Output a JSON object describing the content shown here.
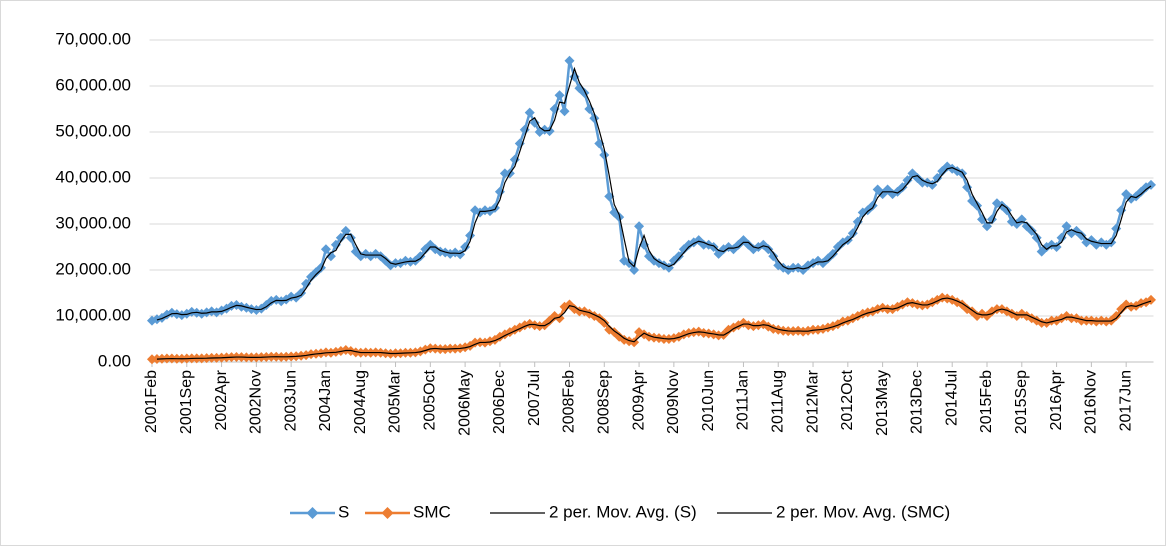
{
  "chart_data": {
    "type": "line",
    "categories": [
      "2001Feb",
      null,
      null,
      null,
      null,
      null,
      null,
      "2001Sep",
      null,
      null,
      null,
      null,
      null,
      null,
      "2002Apr",
      null,
      null,
      null,
      null,
      null,
      null,
      "2002Nov",
      null,
      null,
      null,
      null,
      null,
      null,
      "2003Jun",
      null,
      null,
      null,
      null,
      null,
      null,
      "2004Jan",
      null,
      null,
      null,
      null,
      null,
      null,
      "2004Aug",
      null,
      null,
      null,
      null,
      null,
      null,
      "2005Mar",
      null,
      null,
      null,
      null,
      null,
      null,
      "2005Oct",
      null,
      null,
      null,
      null,
      null,
      null,
      "2006May",
      null,
      null,
      null,
      null,
      null,
      null,
      "2006Dec",
      null,
      null,
      null,
      null,
      null,
      null,
      "2007Jul",
      null,
      null,
      null,
      null,
      null,
      null,
      "2008Feb",
      null,
      null,
      null,
      null,
      null,
      null,
      "2008Sep",
      null,
      null,
      null,
      null,
      null,
      null,
      "2009Apr",
      null,
      null,
      null,
      null,
      null,
      null,
      "2009Nov",
      null,
      null,
      null,
      null,
      null,
      null,
      "2010Jun",
      null,
      null,
      null,
      null,
      null,
      null,
      "2011Jan",
      null,
      null,
      null,
      null,
      null,
      null,
      "2011Aug",
      null,
      null,
      null,
      null,
      null,
      null,
      "2012Mar",
      null,
      null,
      null,
      null,
      null,
      null,
      "2012Oct",
      null,
      null,
      null,
      null,
      null,
      null,
      "2013May",
      null,
      null,
      null,
      null,
      null,
      null,
      "2013Dec",
      null,
      null,
      null,
      null,
      null,
      null,
      "2014Jul",
      null,
      null,
      null,
      null,
      null,
      null,
      "2015Feb",
      null,
      null,
      null,
      null,
      null,
      null,
      "2015Sep",
      null,
      null,
      null,
      null,
      null,
      null,
      "2016Apr",
      null,
      null,
      null,
      null,
      null,
      null,
      "2016Nov",
      null,
      null,
      null,
      null,
      null,
      null,
      "2017Jun",
      null,
      null,
      null,
      null,
      null
    ],
    "series": [
      {
        "name": "S",
        "color": "#5b9bd5",
        "values": [
          9000,
          9300,
          9600,
          10300,
          10700,
          10400,
          10200,
          10500,
          10900,
          10700,
          10500,
          10800,
          11000,
          10800,
          11200,
          11600,
          12200,
          12400,
          12000,
          11800,
          11500,
          11300,
          11600,
          12400,
          13300,
          13500,
          13200,
          13600,
          14200,
          14000,
          15000,
          17000,
          18500,
          19500,
          20500,
          24500,
          23000,
          25500,
          27000,
          28500,
          27000,
          24000,
          23000,
          23500,
          23000,
          23500,
          23000,
          22000,
          21000,
          21500,
          21500,
          22000,
          21800,
          22000,
          23000,
          24500,
          25500,
          24500,
          24000,
          23800,
          23500,
          23800,
          23400,
          25000,
          27500,
          33000,
          32500,
          33000,
          32800,
          33500,
          37000,
          41000,
          41000,
          44000,
          47500,
          50500,
          54200,
          52000,
          50000,
          50500,
          50200,
          55000,
          58000,
          54500,
          65500,
          62000,
          59500,
          58500,
          55000,
          53000,
          47500,
          45000,
          36000,
          32500,
          31500,
          22000,
          21500,
          20000,
          29500,
          25500,
          23000,
          22000,
          21500,
          21000,
          20500,
          22000,
          23000,
          24500,
          25500,
          26000,
          26500,
          25500,
          25500,
          25000,
          23500,
          24500,
          25000,
          24500,
          25500,
          26500,
          25500,
          24500,
          25000,
          25500,
          24500,
          23000,
          21000,
          20500,
          20000,
          20500,
          20500,
          20000,
          21000,
          21500,
          22000,
          21500,
          22500,
          23500,
          25000,
          26000,
          26500,
          28000,
          30500,
          32500,
          33000,
          34000,
          37500,
          36500,
          37500,
          36500,
          37000,
          38000,
          39500,
          41000,
          40000,
          39000,
          39000,
          38500,
          40000,
          41500,
          42500,
          42000,
          41500,
          41000,
          38000,
          35000,
          34000,
          31000,
          29500,
          31000,
          34500,
          34000,
          33000,
          30500,
          30000,
          31000,
          29500,
          28500,
          27000,
          24000,
          25000,
          25500,
          25000,
          27000,
          29500,
          28000,
          28500,
          27500,
          26000,
          26500,
          25500,
          26000,
          25500,
          26000,
          29000,
          33000,
          36500,
          35500,
          36000,
          37000,
          38000,
          38500
        ]
      },
      {
        "name": "SMC",
        "color": "#ed7d31",
        "values": [
          600,
          650,
          700,
          750,
          750,
          700,
          700,
          750,
          800,
          800,
          800,
          850,
          900,
          900,
          950,
          1000,
          1050,
          1100,
          1050,
          1000,
          1000,
          1000,
          1050,
          1100,
          1150,
          1150,
          1100,
          1150,
          1200,
          1250,
          1350,
          1500,
          1700,
          1800,
          1900,
          2100,
          2000,
          2200,
          2400,
          2600,
          2400,
          2100,
          2000,
          2100,
          2000,
          2100,
          2000,
          1900,
          1800,
          1900,
          1900,
          2000,
          2000,
          2100,
          2300,
          2700,
          3000,
          2900,
          2800,
          2800,
          2900,
          2900,
          3000,
          3200,
          3500,
          4200,
          4300,
          4200,
          4500,
          4800,
          5500,
          6000,
          6500,
          7000,
          7500,
          8000,
          8300,
          8000,
          7800,
          8000,
          9000,
          10000,
          9500,
          12000,
          12500,
          11500,
          11000,
          11000,
          10500,
          10000,
          9500,
          8500,
          7000,
          6500,
          5500,
          4800,
          4500,
          4300,
          6500,
          6000,
          5500,
          5300,
          5200,
          5000,
          5000,
          5200,
          5500,
          6000,
          6300,
          6500,
          6600,
          6300,
          6200,
          6000,
          5800,
          5900,
          7000,
          7500,
          8000,
          8500,
          8000,
          7800,
          8000,
          8200,
          7700,
          7200,
          7000,
          6800,
          6700,
          6700,
          6800,
          6600,
          6800,
          7000,
          7000,
          7200,
          7500,
          7800,
          8200,
          8800,
          9000,
          9500,
          10000,
          10500,
          10800,
          11000,
          11500,
          11800,
          11500,
          11500,
          12000,
          12500,
          13000,
          12800,
          12500,
          12300,
          12500,
          13000,
          13500,
          14000,
          13800,
          13500,
          13000,
          12500,
          11500,
          11000,
          10000,
          10500,
          10000,
          11000,
          11500,
          11500,
          11000,
          10500,
          10000,
          10500,
          10000,
          9500,
          9000,
          8500,
          8500,
          9000,
          9000,
          9500,
          10000,
          9500,
          9500,
          9000,
          9000,
          9000,
          8800,
          9000,
          8800,
          9000,
          10000,
          11500,
          12500,
          12000,
          12200,
          12800,
          13000,
          13500
        ]
      }
    ],
    "trendlines": [
      {
        "name": "2 per. Mov. Avg. (S)",
        "series": 0,
        "period": 2,
        "color": "#000000"
      },
      {
        "name": "2 per. Mov. Avg. (SMC)",
        "series": 1,
        "period": 2,
        "color": "#000000"
      }
    ],
    "ylim": [
      0,
      70000
    ],
    "yticks": [
      {
        "value": 0,
        "label": "0.00"
      },
      {
        "value": 10000,
        "label": "10,000.00"
      },
      {
        "value": 20000,
        "label": "20,000.00"
      },
      {
        "value": 30000,
        "label": "30,000.00"
      },
      {
        "value": 40000,
        "label": "40,000.00"
      },
      {
        "value": 50000,
        "label": "50,000.00"
      },
      {
        "value": 60000,
        "label": "60,000.00"
      },
      {
        "value": 70000,
        "label": "70,000.00"
      }
    ],
    "grid": true,
    "legend": "bottom"
  }
}
